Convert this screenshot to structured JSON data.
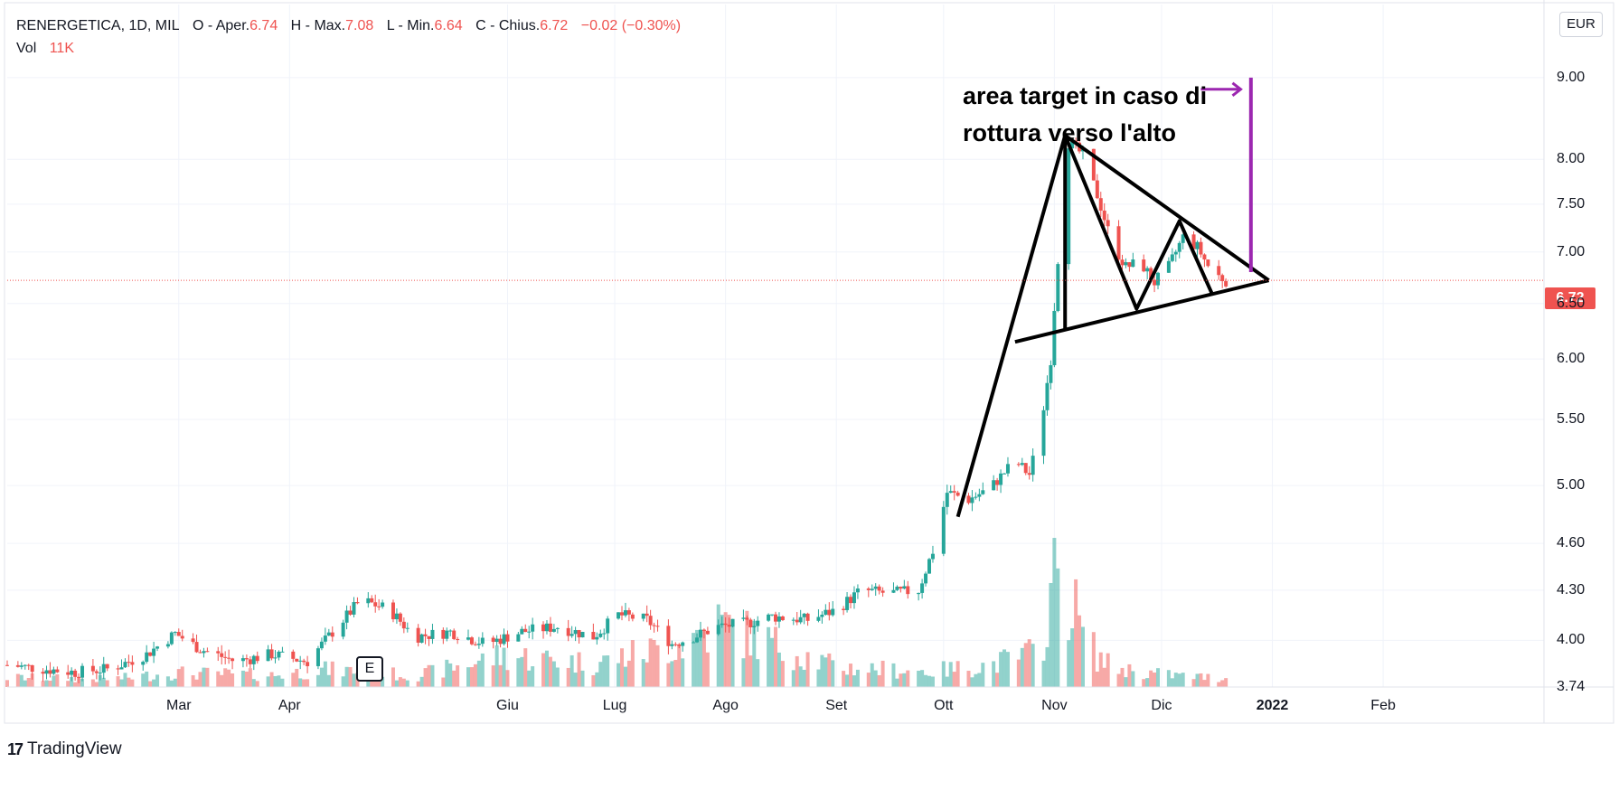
{
  "header": {
    "symbol": "RENERGETICA, 1D, MIL",
    "open_label": "O - Aper.",
    "open": "6.74",
    "high_label": "H - Max.",
    "high": "7.08",
    "low_label": "L - Min.",
    "low": "6.64",
    "close_label": "C - Chius.",
    "close": "6.72",
    "change": "−0.02 (−0.30%)",
    "vol_label": "Vol",
    "vol": "11K"
  },
  "currency": "EUR",
  "last_price": "6.72",
  "earnings_marker": "E",
  "brand": "TradingView",
  "annotation": {
    "line1": "area target in caso di",
    "line2": "rottura verso l'alto"
  },
  "colors": {
    "up": "#26a69a",
    "down": "#ef5350",
    "target": "#9c27b0",
    "drawing": "#000000"
  },
  "chart_data": {
    "type": "candlestick",
    "y_scale": "log",
    "ylim": [
      3.74,
      10.0
    ],
    "y_ticks": [
      "3.74",
      "4.00",
      "4.30",
      "4.60",
      "5.00",
      "5.50",
      "6.00",
      "6.50",
      "7.00",
      "7.50",
      "8.00",
      "9.00"
    ],
    "x_ticks": [
      "Mar",
      "Apr",
      "Giu",
      "Lug",
      "Ago",
      "Set",
      "Ott",
      "Nov",
      "Dic",
      "2022",
      "Feb"
    ],
    "x_tick_days": [
      59,
      90,
      151,
      181,
      212,
      243,
      273,
      304,
      334,
      365,
      396
    ],
    "x_range_days": [
      11,
      441
    ],
    "series_points": [
      [
        11,
        3.86
      ],
      [
        30,
        3.82
      ],
      [
        40,
        3.84
      ],
      [
        50,
        3.92
      ],
      [
        58,
        4.04
      ],
      [
        65,
        3.95
      ],
      [
        75,
        3.88
      ],
      [
        85,
        3.92
      ],
      [
        95,
        3.88
      ],
      [
        105,
        4.12
      ],
      [
        110,
        4.24
      ],
      [
        118,
        4.18
      ],
      [
        125,
        4.02
      ],
      [
        135,
        4.05
      ],
      [
        145,
        3.98
      ],
      [
        155,
        4.05
      ],
      [
        165,
        4.08
      ],
      [
        175,
        4.02
      ],
      [
        182,
        4.15
      ],
      [
        190,
        4.12
      ],
      [
        197,
        3.98
      ],
      [
        203,
        4.02
      ],
      [
        210,
        4.08
      ],
      [
        218,
        4.1
      ],
      [
        225,
        4.14
      ],
      [
        235,
        4.12
      ],
      [
        243,
        4.18
      ],
      [
        250,
        4.3
      ],
      [
        258,
        4.28
      ],
      [
        266,
        4.3
      ],
      [
        270,
        4.55
      ],
      [
        274,
        4.95
      ],
      [
        280,
        4.9
      ],
      [
        286,
        4.98
      ],
      [
        293,
        5.18
      ],
      [
        297,
        5.08
      ],
      [
        300,
        5.4
      ],
      [
        303,
        6.0
      ],
      [
        306,
        7.4
      ],
      [
        308,
        8.2
      ],
      [
        312,
        8.05
      ],
      [
        316,
        7.6
      ],
      [
        320,
        7.1
      ],
      [
        324,
        6.85
      ],
      [
        328,
        6.9
      ],
      [
        332,
        6.7
      ],
      [
        336,
        6.85
      ],
      [
        340,
        7.15
      ],
      [
        344,
        7.05
      ],
      [
        348,
        6.8
      ],
      [
        352,
        6.72
      ]
    ],
    "volume_max_label": "11K",
    "volume_points": [
      [
        11,
        12
      ],
      [
        40,
        10
      ],
      [
        58,
        18
      ],
      [
        85,
        15
      ],
      [
        100,
        22
      ],
      [
        110,
        20
      ],
      [
        125,
        14
      ],
      [
        150,
        40
      ],
      [
        175,
        30
      ],
      [
        200,
        55
      ],
      [
        210,
        80
      ],
      [
        243,
        25
      ],
      [
        270,
        20
      ],
      [
        286,
        28
      ],
      [
        300,
        45
      ],
      [
        303,
        115
      ],
      [
        306,
        165
      ],
      [
        308,
        120
      ],
      [
        312,
        70
      ],
      [
        316,
        40
      ],
      [
        320,
        25
      ],
      [
        330,
        18
      ],
      [
        340,
        14
      ],
      [
        352,
        11
      ]
    ],
    "drawings": {
      "flagpole": [
        [
          277,
          4.78
        ],
        [
          307,
          8.28
        ]
      ],
      "triangle_upper": [
        [
          307,
          8.28
        ],
        [
          364,
          6.72
        ]
      ],
      "triangle_lower": [
        [
          293,
          6.15
        ],
        [
          364,
          6.72
        ]
      ],
      "zigzag": [
        [
          307,
          8.28
        ],
        [
          327,
          6.45
        ],
        [
          339,
          7.32
        ],
        [
          348,
          6.6
        ]
      ],
      "pole_height": [
        [
          307,
          8.28
        ],
        [
          307,
          6.25
        ]
      ],
      "target_line": [
        [
          359,
          6.8
        ],
        [
          359,
          9.0
        ]
      ],
      "target_arrow_day": 345
    }
  }
}
